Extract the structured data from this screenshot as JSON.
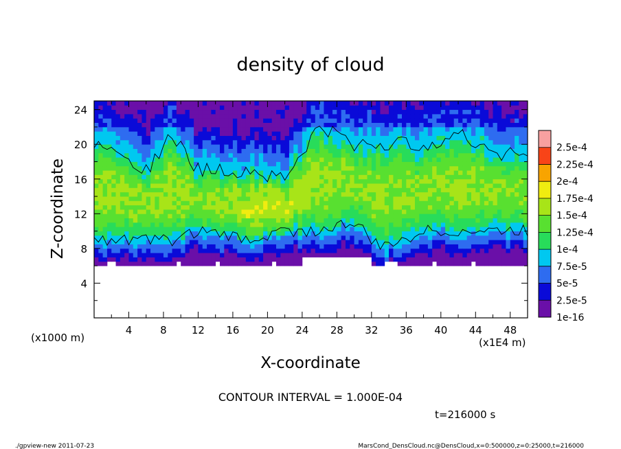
{
  "chart_data": {
    "type": "heatmap",
    "title": "density of cloud",
    "xlabel": "X-coordinate",
    "ylabel": "Z-coordinate",
    "x_unit": "(x1E4 m)",
    "y_unit": "(x1000 m)",
    "xlim": [
      0,
      50
    ],
    "ylim": [
      0,
      25
    ],
    "x_ticks": [
      "4",
      "8",
      "12",
      "16",
      "20",
      "24",
      "28",
      "32",
      "36",
      "40",
      "44",
      "48"
    ],
    "y_ticks": [
      "4",
      "8",
      "12",
      "16",
      "20",
      "24"
    ],
    "contour_interval": "CONTOUR INTERVAL = 1.000E-04",
    "time_label": "t=216000 s",
    "footer_left": "./gpview-new  2011-07-23",
    "footer_right": "MarsCond_DensCloud.nc@DensCloud,x=0:500000,z=0:25000,t=216000",
    "colorbar": {
      "levels": [
        "1e-16",
        "2.5e-5",
        "5e-5",
        "7.5e-5",
        "1e-4",
        "1.25e-4",
        "1.5e-4",
        "1.75e-4",
        "2e-4",
        "2.25e-4",
        "2.5e-4"
      ],
      "colors": [
        "#6a0fa8",
        "#0a0ad8",
        "#2e6cf0",
        "#00c8f0",
        "#28dc5a",
        "#58e030",
        "#a8e418",
        "#f0ec10",
        "#f8a400",
        "#f84418",
        "#f8a0a0"
      ]
    },
    "field": {
      "cloud_base_km": 6,
      "cloud_top_km": 25,
      "columns": [
        {
          "x": 2,
          "core_bottom": 9,
          "core_top": 20,
          "peak": 0.00016
        },
        {
          "x": 6,
          "core_bottom": 9,
          "core_top": 17,
          "peak": 0.000155
        },
        {
          "x": 9,
          "core_bottom": 9,
          "core_top": 21,
          "peak": 0.00016
        },
        {
          "x": 12,
          "core_bottom": 10,
          "core_top": 17,
          "peak": 0.00015
        },
        {
          "x": 18,
          "core_bottom": 9,
          "core_top": 17,
          "peak": 0.00017
        },
        {
          "x": 22,
          "core_bottom": 10,
          "core_top": 16,
          "peak": 0.00017
        },
        {
          "x": 26,
          "core_bottom": 10,
          "core_top": 22,
          "peak": 0.00016
        },
        {
          "x": 30,
          "core_bottom": 11,
          "core_top": 20,
          "peak": 0.00015
        },
        {
          "x": 33,
          "core_bottom": 8,
          "core_top": 20,
          "peak": 0.000155
        },
        {
          "x": 38,
          "core_bottom": 10,
          "core_top": 20,
          "peak": 0.00015
        },
        {
          "x": 42,
          "core_bottom": 10,
          "core_top": 21,
          "peak": 0.00016
        },
        {
          "x": 47,
          "core_bottom": 10,
          "core_top": 19,
          "peak": 0.00015
        }
      ]
    }
  }
}
